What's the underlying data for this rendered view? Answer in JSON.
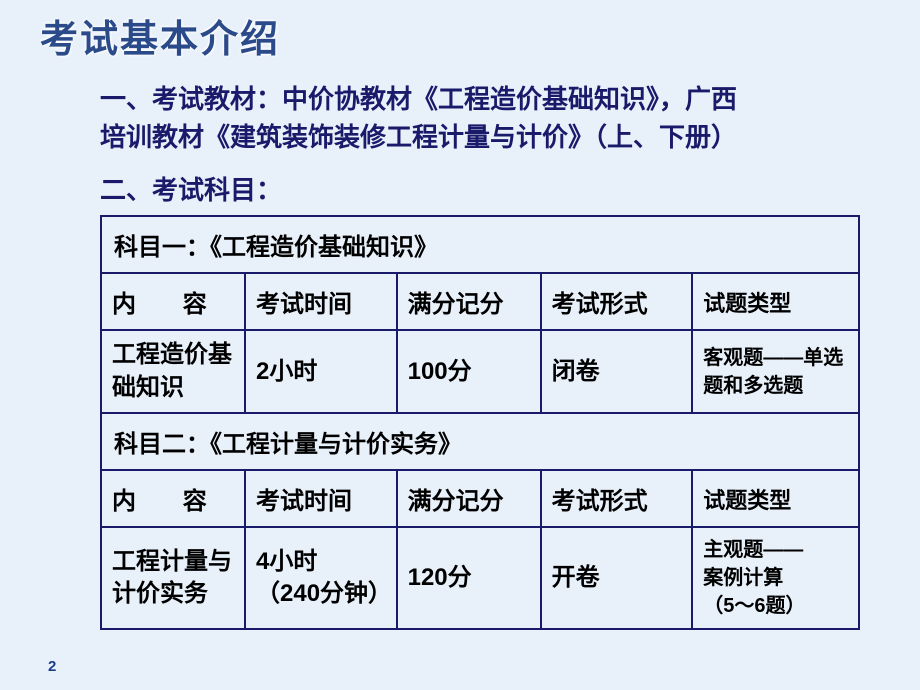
{
  "slide": {
    "title": "考试基本介绍",
    "intro_line1": "一、考试教材：中价协教材《工程造价基础知识》，广西",
    "intro_line2": "培训教材《建筑装饰装修工程计量与计价》（上、下册）",
    "subject_label": "二、考试科目：",
    "page_number": "2"
  },
  "table": {
    "section1_title": "科目一：《工程造价基础知识》",
    "section2_title": "科目二：《工程计量与计价实务》",
    "headers": {
      "content_prefix": "内",
      "content_suffix": "容",
      "exam_time": "考试时间",
      "full_score": "满分记分",
      "exam_form": "考试形式",
      "question_type": "试题类型"
    },
    "row1": {
      "content": "工程造价基础知识",
      "exam_time": "2小时",
      "full_score": "100分",
      "exam_form": "闭卷",
      "question_type": "客观题——单选题和多选题"
    },
    "row2": {
      "content": "工程计量与计价实务",
      "exam_time_line1": "4小时",
      "exam_time_line2": "（240分钟）",
      "full_score": "120分",
      "exam_form": "开卷",
      "question_type_line1": "主观题——",
      "question_type_line2": "案例计算",
      "question_type_line3": "（5～6题）"
    }
  },
  "style": {
    "background_color": "#e8f0fa",
    "title_color": "#2a4a8a",
    "text_color": "#1a1a6a",
    "border_color": "#1a1a6a",
    "col_widths": [
      "19%",
      "20%",
      "19%",
      "20%",
      "22%"
    ]
  }
}
